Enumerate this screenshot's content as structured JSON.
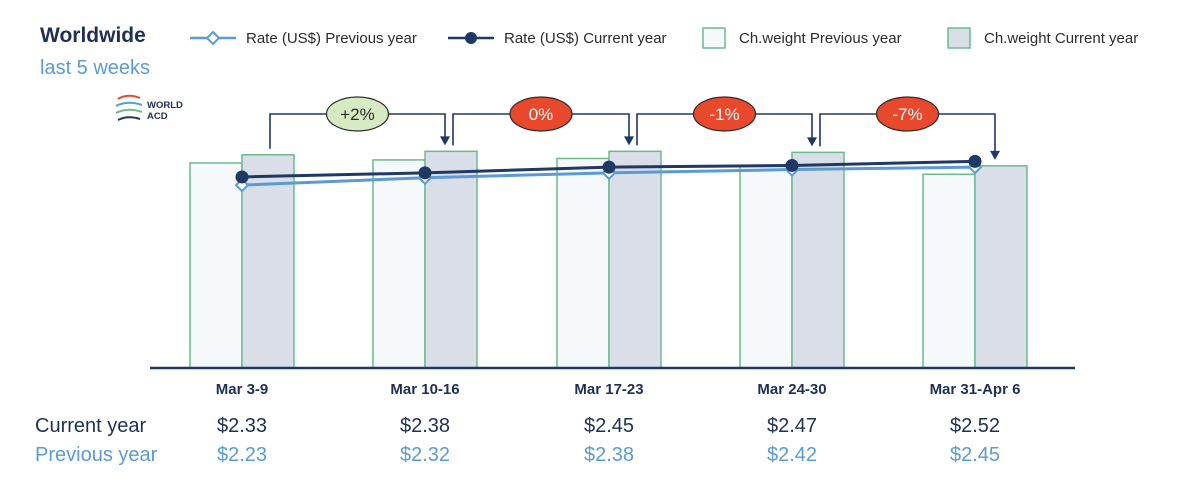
{
  "header": {
    "title": "Worldwide",
    "subtitle": "last 5 weeks"
  },
  "logo": {
    "line1": "WORLD",
    "line2": "ACD",
    "icon": "world-acd-logo"
  },
  "legend": [
    {
      "label": "Rate (US$) Previous year",
      "kind": "line-diamond",
      "color": "#5a9bd5"
    },
    {
      "label": "Rate (US$) Current year",
      "kind": "line-dot",
      "color": "#1f3864"
    },
    {
      "label": "Ch.weight Previous year",
      "kind": "box",
      "fill": "#f6f9fc",
      "stroke": "#6cbb8c"
    },
    {
      "label": "Ch.weight Current year",
      "kind": "box",
      "fill": "#d9dee8",
      "stroke": "#6cbb8c"
    }
  ],
  "chart_data": {
    "type": "bar",
    "categories": [
      "Mar 3-9",
      "Mar 10-16",
      "Mar 17-23",
      "Mar 24-30",
      "Mar 31-Apr 6"
    ],
    "series": [
      {
        "name": "Ch.weight Previous year",
        "kind": "bar",
        "values": [
          100,
          101.5,
          102.2,
          98.8,
          94.5
        ]
      },
      {
        "name": "Ch.weight Current year",
        "kind": "bar",
        "values": [
          104,
          105.7,
          105.7,
          105.2,
          98.6
        ]
      },
      {
        "name": "Rate (US$) Previous year",
        "kind": "line",
        "values": [
          2.23,
          2.32,
          2.38,
          2.42,
          2.45
        ]
      },
      {
        "name": "Rate (US$) Current year",
        "kind": "line",
        "values": [
          2.33,
          2.38,
          2.45,
          2.47,
          2.52
        ]
      }
    ],
    "badges": [
      {
        "label": "+2%",
        "fill": "#d6ebc4",
        "text_color": "#2b2b2b"
      },
      {
        "label": "0%",
        "fill": "#e8492c",
        "text_color": "#ffffff"
      },
      {
        "label": "-1%",
        "fill": "#e8492c",
        "text_color": "#ffffff"
      },
      {
        "label": "-7%",
        "fill": "#e8492c",
        "text_color": "#ffffff"
      }
    ],
    "bar_scale_max": 160,
    "rate_scale": [
      0.0,
      4.0
    ],
    "table": {
      "rows": [
        {
          "label": "Current year",
          "values": [
            "$2.33",
            "$2.38",
            "$2.45",
            "$2.47",
            "$2.52"
          ]
        },
        {
          "label": "Previous year",
          "values": [
            "$2.23",
            "$2.32",
            "$2.38",
            "$2.42",
            "$2.45"
          ]
        }
      ]
    },
    "colors": {
      "bar_prev_fill": "#f6f9fc",
      "bar_cur_fill": "#d9dee8",
      "bar_stroke": "#6cbb8c",
      "line_prev": "#5a9bd5",
      "line_cur": "#1f3864",
      "connector": "#1f3864",
      "axis": "#1f3864"
    },
    "grid": false,
    "legend_position": "top"
  }
}
